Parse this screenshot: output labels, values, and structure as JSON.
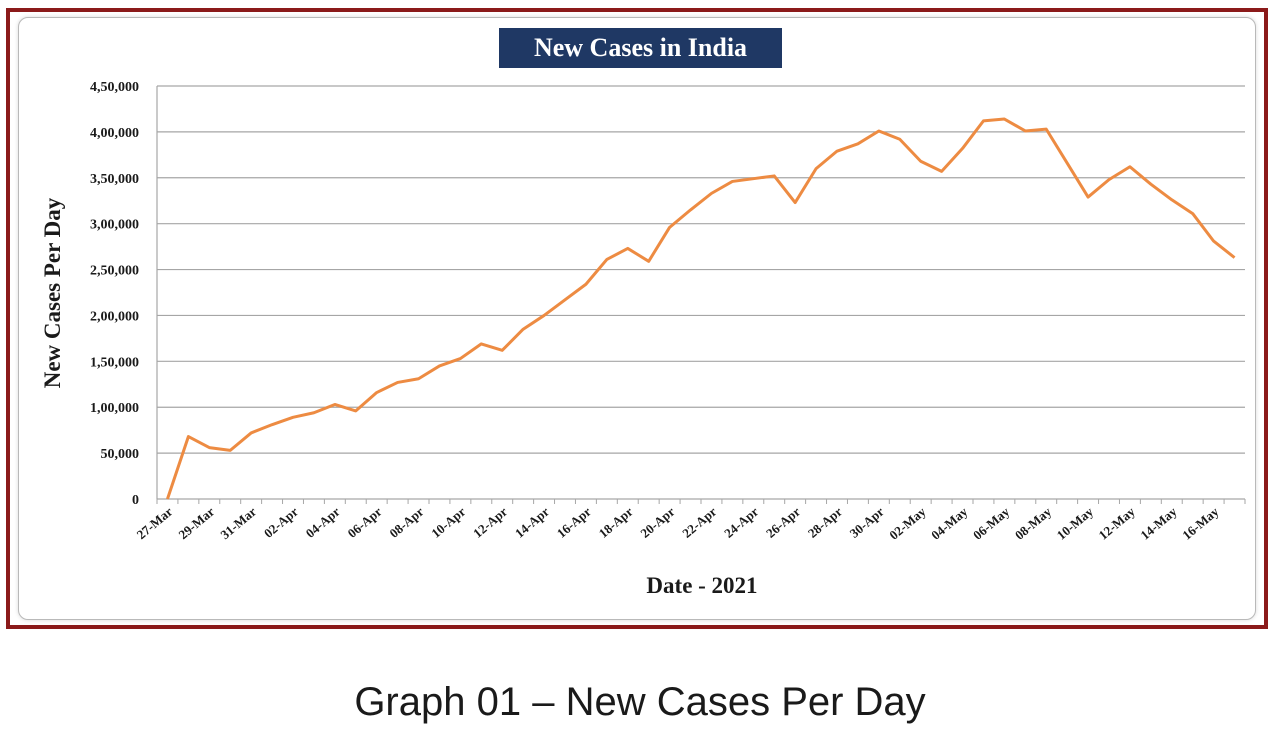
{
  "caption": "Graph 01 – New Cases Per Day",
  "colors": {
    "line": "#ed8b42",
    "grid": "#a6a6a6",
    "title_bg": "#1f3864",
    "title_text": "#ffffff",
    "border": "#8b1a1a"
  },
  "chart_data": {
    "type": "line",
    "title": "New Cases in India",
    "xlabel": "Date - 2021",
    "ylabel": "New Cases Per Day",
    "ylim": [
      0,
      450000
    ],
    "y_ticks": [
      0,
      50000,
      100000,
      150000,
      200000,
      250000,
      300000,
      350000,
      400000,
      450000
    ],
    "y_tick_labels": [
      "0",
      "50,000",
      "1,00,000",
      "1,50,000",
      "2,00,000",
      "2,50,000",
      "3,00,000",
      "3,50,000",
      "4,00,000",
      "4,50,000"
    ],
    "x_tick_labels": [
      "27-Mar",
      "29-Mar",
      "31-Mar",
      "02-Apr",
      "04-Apr",
      "06-Apr",
      "08-Apr",
      "10-Apr",
      "12-Apr",
      "14-Apr",
      "16-Apr",
      "18-Apr",
      "20-Apr",
      "22-Apr",
      "24-Apr",
      "26-Apr",
      "28-Apr",
      "30-Apr",
      "02-May",
      "04-May",
      "06-May",
      "08-May",
      "10-May",
      "12-May",
      "14-May",
      "16-May"
    ],
    "grid": true,
    "legend": "none",
    "series": [
      {
        "name": "New Cases",
        "values": [
          0,
          68000,
          56000,
          53000,
          72000,
          81000,
          89000,
          94000,
          103000,
          96000,
          116000,
          127000,
          131000,
          145000,
          153000,
          169000,
          162000,
          185000,
          200000,
          217000,
          234000,
          261000,
          273000,
          259000,
          296000,
          315000,
          333000,
          346000,
          349000,
          352000,
          323000,
          360000,
          379000,
          387000,
          401000,
          392000,
          368000,
          357000,
          382000,
          412000,
          414000,
          401000,
          403000,
          366000,
          329000,
          348000,
          362000,
          343000,
          326000,
          311000,
          281000,
          263000
        ]
      }
    ]
  }
}
